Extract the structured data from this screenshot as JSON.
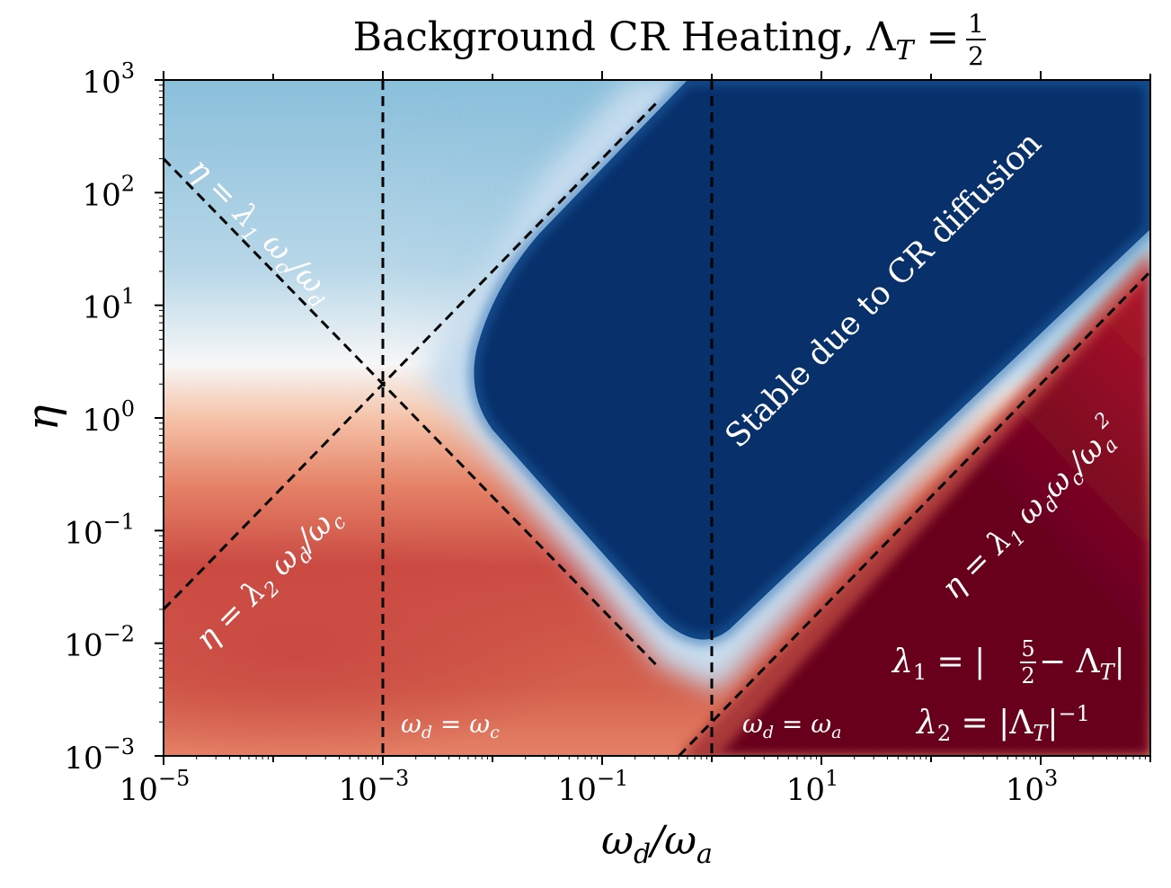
{
  "chart_data": {
    "type": "heatmap",
    "title": "Background CR Heating, Λ",
    "title_sub": "T",
    "title_eq": " = ",
    "title_frac_num": "1",
    "title_frac_den": "2",
    "xlabel_main": "ω",
    "xlabel_sub1": "d",
    "xlabel_slash": "/ω",
    "xlabel_sub2": "a",
    "ylabel": "η",
    "x_scale": "log",
    "y_scale": "log",
    "xlim_log10": [
      -5,
      4
    ],
    "ylim_log10": [
      -3,
      3
    ],
    "x_ticks": [
      {
        "exp": -5,
        "base": "10",
        "sup": "−5"
      },
      {
        "exp": -3,
        "base": "10",
        "sup": "−3"
      },
      {
        "exp": -1,
        "base": "10",
        "sup": "−1"
      },
      {
        "exp": 1,
        "base": "10",
        "sup": "1"
      },
      {
        "exp": 3,
        "base": "10",
        "sup": "3"
      }
    ],
    "y_ticks": [
      {
        "exp": -3,
        "base": "10",
        "sup": "−3"
      },
      {
        "exp": -2,
        "base": "10",
        "sup": "−2"
      },
      {
        "exp": -1,
        "base": "10",
        "sup": "−1"
      },
      {
        "exp": 0,
        "base": "10",
        "sup": "0"
      },
      {
        "exp": 1,
        "base": "10",
        "sup": "1"
      },
      {
        "exp": 2,
        "base": "10",
        "sup": "2"
      },
      {
        "exp": 3,
        "base": "10",
        "sup": "3"
      }
    ],
    "colormap": "RdBu",
    "colors": {
      "stable_blue": "#08306b",
      "light_blue": "#8abfdb",
      "white": "#f7f7f7",
      "salmon": "#e58267",
      "red": "#c94741",
      "dark_red": "#67001f",
      "line": "#000000"
    },
    "reference_lines": [
      {
        "label": "η = λ₁ ω_c/ω_d",
        "kind": "diagonal",
        "slope": -1,
        "through_log10": [
          -3,
          0.301
        ],
        "x_range_log10": [
          -5,
          -0.5
        ]
      },
      {
        "label": "η = λ₂ ω_d/ω_c",
        "kind": "diagonal",
        "slope": 1,
        "through_log10": [
          -3,
          0.301
        ],
        "x_range_log10": [
          -5,
          -0.5
        ]
      },
      {
        "label": "η = λ₁ ω_dω_c/ω_a²",
        "kind": "diagonal",
        "slope": 1,
        "through_log10": [
          0,
          -2.7
        ],
        "x_range_log10": [
          -0.3,
          4
        ]
      },
      {
        "label": "ω_d = ω_c",
        "kind": "vertical",
        "x_log10": -3
      },
      {
        "label": "ω_d = ω_a",
        "kind": "vertical",
        "x_log10": 0
      }
    ],
    "annotations": {
      "stable_region": "Stable due to CR diffusion",
      "line1_label": {
        "a": "η = λ",
        "sub": "1",
        "b": " ω",
        "sub2": "c",
        "c": "/ω",
        "sub3": "d"
      },
      "line2_label": {
        "a": "η = λ",
        "sub": "2",
        "b": " ω",
        "sub2": "d",
        "c": "/ω",
        "sub3": "c"
      },
      "line3_label": {
        "a": "η = λ",
        "sub": "1",
        "b": " ω",
        "sub2": "d",
        "c": "ω",
        "sub3": "c",
        "d": "/ω",
        "sub4": "a",
        "sup4": "2"
      },
      "vline1_label": {
        "a": "ω",
        "sub": "d",
        "b": " = ω",
        "sub2": "c"
      },
      "vline2_label": {
        "a": "ω",
        "sub": "d",
        "b": " = ω",
        "sub2": "a"
      },
      "lambda1": {
        "a": "λ",
        "sub": "1",
        "b": " = |",
        "num": "5",
        "den": "2",
        "c": " − Λ",
        "sub2": "T",
        "d": "|"
      },
      "lambda2": {
        "a": "λ",
        "sub": "2",
        "b": " = |Λ",
        "sub2": "T",
        "c": "|",
        "sup": "−1"
      }
    }
  }
}
